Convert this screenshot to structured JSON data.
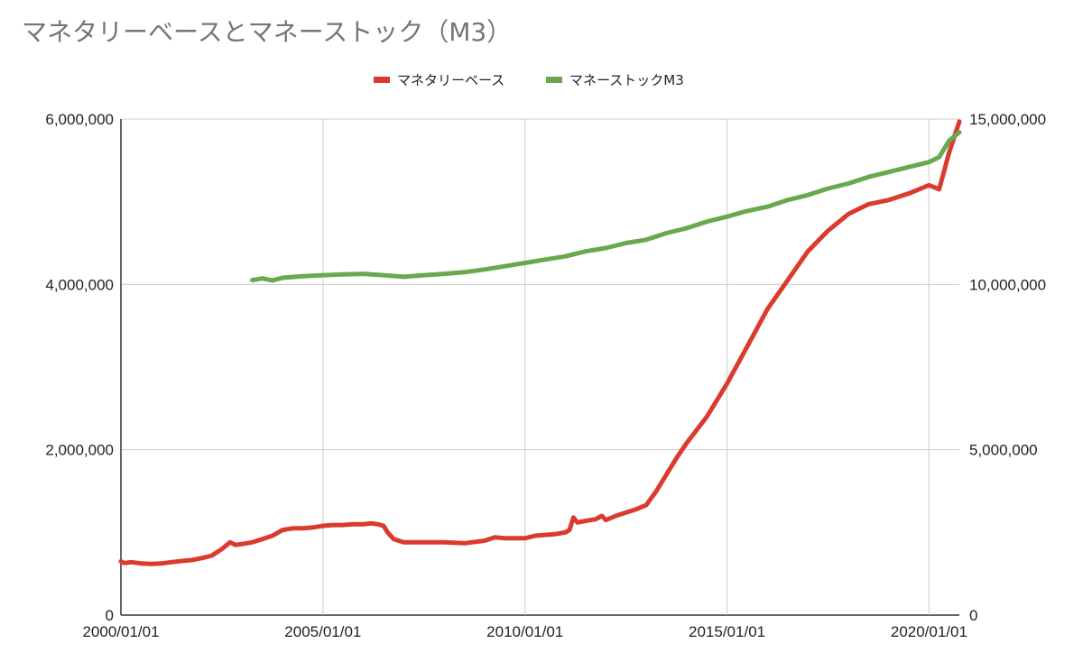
{
  "chart_data": {
    "type": "line",
    "title": "マネタリーベースとマネーストック（M3）",
    "legend_position": "top",
    "grid": true,
    "x_ticks": [
      "2000/01/01",
      "2005/01/01",
      "2010/01/01",
      "2015/01/01",
      "2020/01/01"
    ],
    "xlim": [
      2000.0,
      2020.75
    ],
    "y_left": {
      "ylim": [
        0,
        6000000
      ],
      "tick_labels": [
        "0",
        "2,000,000",
        "4,000,000",
        "6,000,000"
      ],
      "tick_values": [
        0,
        2000000,
        4000000,
        6000000
      ]
    },
    "y_right": {
      "ylim": [
        0,
        15000000
      ],
      "tick_labels": [
        "0",
        "5,000,000",
        "10,000,000",
        "15,000,000"
      ],
      "tick_values": [
        0,
        5000000,
        10000000,
        15000000
      ]
    },
    "series": [
      {
        "name": "マネタリーベース",
        "axis": "left",
        "color": "#db3b2f",
        "points": [
          [
            2000.0,
            650000
          ],
          [
            2000.08,
            630000
          ],
          [
            2000.25,
            640000
          ],
          [
            2000.5,
            625000
          ],
          [
            2000.75,
            620000
          ],
          [
            2001.0,
            625000
          ],
          [
            2001.25,
            640000
          ],
          [
            2001.5,
            655000
          ],
          [
            2001.75,
            665000
          ],
          [
            2002.0,
            690000
          ],
          [
            2002.25,
            720000
          ],
          [
            2002.5,
            800000
          ],
          [
            2002.7,
            880000
          ],
          [
            2002.83,
            850000
          ],
          [
            2003.0,
            860000
          ],
          [
            2003.25,
            880000
          ],
          [
            2003.5,
            920000
          ],
          [
            2003.75,
            960000
          ],
          [
            2004.0,
            1030000
          ],
          [
            2004.25,
            1050000
          ],
          [
            2004.5,
            1050000
          ],
          [
            2004.75,
            1060000
          ],
          [
            2005.0,
            1080000
          ],
          [
            2005.25,
            1090000
          ],
          [
            2005.5,
            1090000
          ],
          [
            2005.75,
            1100000
          ],
          [
            2006.0,
            1100000
          ],
          [
            2006.2,
            1110000
          ],
          [
            2006.35,
            1100000
          ],
          [
            2006.5,
            1080000
          ],
          [
            2006.6,
            1000000
          ],
          [
            2006.75,
            920000
          ],
          [
            2007.0,
            880000
          ],
          [
            2007.5,
            880000
          ],
          [
            2008.0,
            880000
          ],
          [
            2008.5,
            870000
          ],
          [
            2009.0,
            900000
          ],
          [
            2009.25,
            940000
          ],
          [
            2009.5,
            930000
          ],
          [
            2010.0,
            930000
          ],
          [
            2010.25,
            960000
          ],
          [
            2010.5,
            970000
          ],
          [
            2010.75,
            980000
          ],
          [
            2011.0,
            1000000
          ],
          [
            2011.1,
            1030000
          ],
          [
            2011.2,
            1180000
          ],
          [
            2011.3,
            1120000
          ],
          [
            2011.5,
            1140000
          ],
          [
            2011.75,
            1160000
          ],
          [
            2011.9,
            1200000
          ],
          [
            2012.0,
            1150000
          ],
          [
            2012.25,
            1200000
          ],
          [
            2012.5,
            1240000
          ],
          [
            2012.75,
            1280000
          ],
          [
            2013.0,
            1330000
          ],
          [
            2013.25,
            1500000
          ],
          [
            2013.5,
            1700000
          ],
          [
            2013.75,
            1900000
          ],
          [
            2014.0,
            2080000
          ],
          [
            2014.5,
            2400000
          ],
          [
            2015.0,
            2800000
          ],
          [
            2015.5,
            3250000
          ],
          [
            2016.0,
            3700000
          ],
          [
            2016.5,
            4050000
          ],
          [
            2017.0,
            4400000
          ],
          [
            2017.5,
            4650000
          ],
          [
            2018.0,
            4850000
          ],
          [
            2018.5,
            4970000
          ],
          [
            2019.0,
            5020000
          ],
          [
            2019.5,
            5100000
          ],
          [
            2020.0,
            5200000
          ],
          [
            2020.25,
            5150000
          ],
          [
            2020.5,
            5600000
          ],
          [
            2020.75,
            5970000
          ]
        ]
      },
      {
        "name": "マネーストックM3",
        "axis": "right",
        "color": "#6aa84f",
        "points": [
          [
            2003.25,
            10130000
          ],
          [
            2003.5,
            10180000
          ],
          [
            2003.75,
            10120000
          ],
          [
            2004.0,
            10200000
          ],
          [
            2004.5,
            10250000
          ],
          [
            2005.0,
            10280000
          ],
          [
            2005.5,
            10300000
          ],
          [
            2006.0,
            10320000
          ],
          [
            2006.5,
            10280000
          ],
          [
            2007.0,
            10230000
          ],
          [
            2007.5,
            10280000
          ],
          [
            2008.0,
            10320000
          ],
          [
            2008.5,
            10370000
          ],
          [
            2009.0,
            10450000
          ],
          [
            2009.5,
            10550000
          ],
          [
            2010.0,
            10650000
          ],
          [
            2010.5,
            10750000
          ],
          [
            2011.0,
            10850000
          ],
          [
            2011.5,
            11000000
          ],
          [
            2012.0,
            11100000
          ],
          [
            2012.5,
            11250000
          ],
          [
            2013.0,
            11350000
          ],
          [
            2013.5,
            11550000
          ],
          [
            2014.0,
            11700000
          ],
          [
            2014.5,
            11900000
          ],
          [
            2015.0,
            12050000
          ],
          [
            2015.5,
            12220000
          ],
          [
            2016.0,
            12350000
          ],
          [
            2016.5,
            12550000
          ],
          [
            2017.0,
            12700000
          ],
          [
            2017.5,
            12900000
          ],
          [
            2018.0,
            13050000
          ],
          [
            2018.5,
            13250000
          ],
          [
            2019.0,
            13400000
          ],
          [
            2019.5,
            13550000
          ],
          [
            2020.0,
            13700000
          ],
          [
            2020.25,
            13850000
          ],
          [
            2020.5,
            14350000
          ],
          [
            2020.75,
            14600000
          ]
        ]
      }
    ]
  }
}
